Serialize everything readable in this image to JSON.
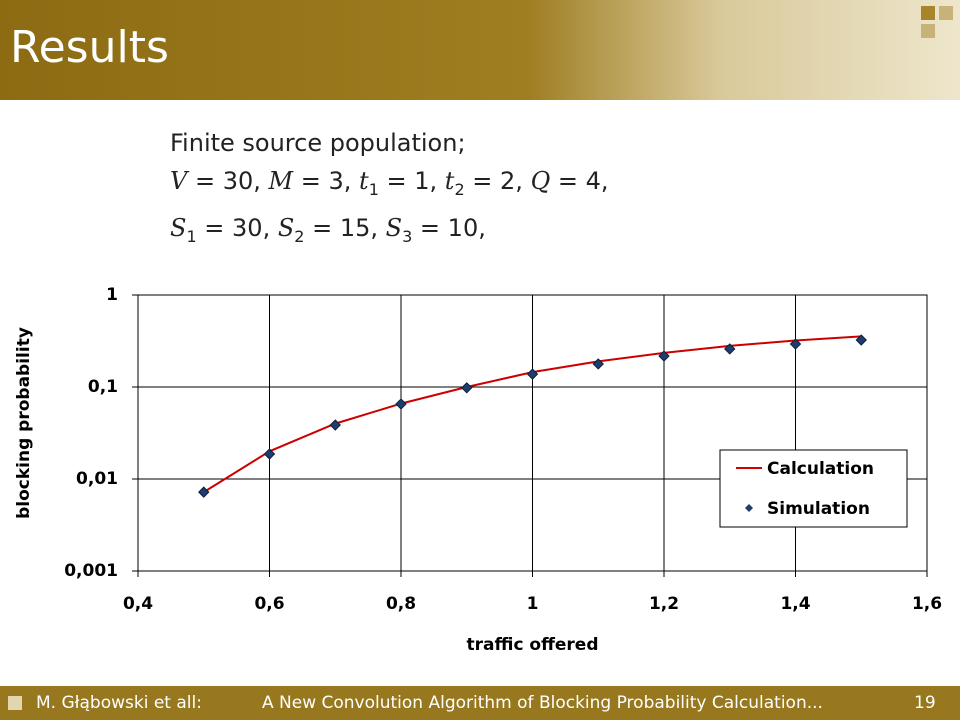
{
  "slide": {
    "title": "Results",
    "intro": "Finite source population;",
    "params_line1": [
      {
        "symbol": "V",
        "value": 30
      },
      {
        "symbol": "M",
        "value": 3
      },
      {
        "symbol": "t",
        "sub": "1",
        "value": 1
      },
      {
        "symbol": "t",
        "sub": "2",
        "value": 2
      },
      {
        "symbol": "Q",
        "value": 4
      }
    ],
    "params_line2": [
      {
        "symbol": "S",
        "sub": "1",
        "value": 30
      },
      {
        "symbol": "S",
        "sub": "2",
        "value": 15
      },
      {
        "symbol": "S",
        "sub": "3",
        "value": 10
      }
    ],
    "footer_authors": "M. Głąbowski et all:",
    "footer_title": "A New Convolution Algorithm of Blocking Probability Calculation...",
    "page_number": "19"
  },
  "chart_data": {
    "type": "line",
    "x_label": "traffic offered",
    "y_label": "blocking probability",
    "x": [
      0.5,
      0.6,
      0.7,
      0.8,
      0.9,
      1.0,
      1.1,
      1.2,
      1.3,
      1.4,
      1.5
    ],
    "series": [
      {
        "name": "Calculation",
        "color": "#cc0000",
        "style": "line",
        "values": [
          0.0072,
          0.02,
          0.04,
          0.066,
          0.1,
          0.145,
          0.19,
          0.235,
          0.28,
          0.32,
          0.355
        ]
      },
      {
        "name": "Simulation",
        "color": "#1f3c6e",
        "style": "markers",
        "values": [
          0.0072,
          0.0187,
          0.0386,
          0.0653,
          0.098,
          0.138,
          0.178,
          0.217,
          0.259,
          0.293,
          0.324
        ]
      }
    ],
    "xlim": [
      0.4,
      1.6
    ],
    "xticks": [
      {
        "value": 0.4,
        "label": "0,4"
      },
      {
        "value": 0.6,
        "label": "0,6"
      },
      {
        "value": 0.8,
        "label": "0,8"
      },
      1,
      {
        "value": 1.2,
        "label": "1,2"
      },
      {
        "value": 1.4,
        "label": "1,4"
      },
      {
        "value": 1.6,
        "label": "1,6"
      }
    ],
    "ylim": [
      0.001,
      1
    ],
    "yticks": [
      {
        "value": 0.001,
        "label": "0,001"
      },
      {
        "value": 0.01,
        "label": "0,01"
      },
      {
        "value": 0.1,
        "label": "0,1"
      },
      1
    ],
    "y_log": true,
    "grid": true,
    "legend": "right"
  }
}
